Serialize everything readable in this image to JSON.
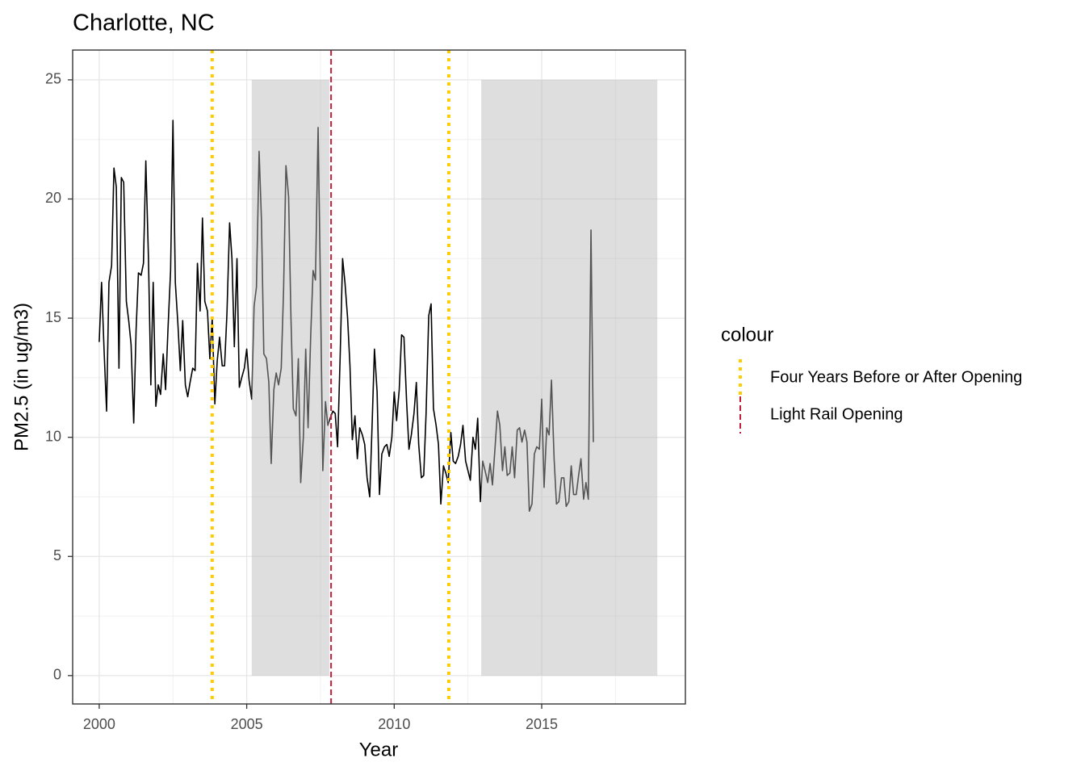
{
  "chart_data": {
    "type": "line",
    "title": "Charlotte, NC",
    "x_label": "Year",
    "y_label": "PM2.5 (in ug/m3)",
    "color": "#000000",
    "x": [
      2000.0,
      2000.08,
      2000.17,
      2000.25,
      2000.33,
      2000.42,
      2000.5,
      2000.58,
      2000.67,
      2000.75,
      2000.83,
      2000.92,
      2001.0,
      2001.08,
      2001.17,
      2001.25,
      2001.33,
      2001.42,
      2001.5,
      2001.58,
      2001.67,
      2001.75,
      2001.83,
      2001.92,
      2002.0,
      2002.08,
      2002.17,
      2002.25,
      2002.33,
      2002.42,
      2002.5,
      2002.58,
      2002.67,
      2002.75,
      2002.83,
      2002.92,
      2003.0,
      2003.08,
      2003.17,
      2003.25,
      2003.33,
      2003.42,
      2003.5,
      2003.58,
      2003.67,
      2003.75,
      2003.83,
      2003.92,
      2004.0,
      2004.08,
      2004.17,
      2004.25,
      2004.33,
      2004.42,
      2004.5,
      2004.58,
      2004.67,
      2004.75,
      2004.83,
      2004.92,
      2005.0,
      2005.08,
      2005.17,
      2005.25,
      2005.33,
      2005.42,
      2005.5,
      2005.58,
      2005.67,
      2005.75,
      2005.83,
      2005.92,
      2006.0,
      2006.08,
      2006.17,
      2006.25,
      2006.33,
      2006.42,
      2006.5,
      2006.58,
      2006.67,
      2006.75,
      2006.83,
      2006.92,
      2007.0,
      2007.08,
      2007.17,
      2007.25,
      2007.33,
      2007.42,
      2007.5,
      2007.58,
      2007.67,
      2007.75,
      2007.83,
      2007.92,
      2008.0,
      2008.08,
      2008.17,
      2008.25,
      2008.33,
      2008.42,
      2008.5,
      2008.58,
      2008.67,
      2008.75,
      2008.83,
      2008.92,
      2009.0,
      2009.08,
      2009.17,
      2009.25,
      2009.33,
      2009.42,
      2009.5,
      2009.58,
      2009.67,
      2009.75,
      2009.83,
      2009.92,
      2010.0,
      2010.08,
      2010.17,
      2010.25,
      2010.33,
      2010.42,
      2010.5,
      2010.58,
      2010.67,
      2010.75,
      2010.83,
      2010.92,
      2011.0,
      2011.08,
      2011.17,
      2011.25,
      2011.33,
      2011.42,
      2011.5,
      2011.58,
      2011.67,
      2011.75,
      2011.83,
      2011.92,
      2012.0,
      2012.08,
      2012.17,
      2012.25,
      2012.33,
      2012.42,
      2012.5,
      2012.58,
      2012.67,
      2012.75,
      2012.83,
      2012.92,
      2013.0,
      2013.08,
      2013.17,
      2013.25,
      2013.33,
      2013.42,
      2013.5,
      2013.58,
      2013.67,
      2013.75,
      2013.83,
      2013.92,
      2014.0,
      2014.08,
      2014.17,
      2014.25,
      2014.33,
      2014.42,
      2014.5,
      2014.58,
      2014.67,
      2014.75,
      2014.83,
      2014.92,
      2015.0,
      2015.08,
      2015.17,
      2015.25,
      2015.33,
      2015.42,
      2015.5,
      2015.58,
      2015.67,
      2015.75,
      2015.83,
      2015.92,
      2016.0,
      2016.08,
      2016.17,
      2016.25,
      2016.33,
      2016.42,
      2016.5,
      2016.58,
      2016.67,
      2016.75
    ],
    "values": [
      14.0,
      16.5,
      13.5,
      11.1,
      16.5,
      17.2,
      21.3,
      20.5,
      12.9,
      20.9,
      20.7,
      15.7,
      14.9,
      13.9,
      10.6,
      14.5,
      16.9,
      16.8,
      17.3,
      21.6,
      17.5,
      12.2,
      16.5,
      11.3,
      12.2,
      11.8,
      13.5,
      12.0,
      14.5,
      17.0,
      23.3,
      16.5,
      14.7,
      12.8,
      14.9,
      12.2,
      11.7,
      12.3,
      12.9,
      12.8,
      17.3,
      15.3,
      19.2,
      15.7,
      15.3,
      13.3,
      15.0,
      11.4,
      13.2,
      14.2,
      13.0,
      13.0,
      15.2,
      19.0,
      17.5,
      13.8,
      17.5,
      12.1,
      12.5,
      12.9,
      13.7,
      12.4,
      11.6,
      15.5,
      16.3,
      22.0,
      19.1,
      13.5,
      13.3,
      12.3,
      8.9,
      12.0,
      12.7,
      12.2,
      12.9,
      16.2,
      21.4,
      20.1,
      15.0,
      11.2,
      10.9,
      13.3,
      8.1,
      10.0,
      13.7,
      10.4,
      14.3,
      17.0,
      16.6,
      23.0,
      16.2,
      8.6,
      11.5,
      10.5,
      10.8,
      11.1,
      11.0,
      9.6,
      13.5,
      17.5,
      16.5,
      15.0,
      13.0,
      9.9,
      10.9,
      9.1,
      10.4,
      10.1,
      9.7,
      8.3,
      7.5,
      10.5,
      13.7,
      11.9,
      7.6,
      9.3,
      9.6,
      9.7,
      9.2,
      10.0,
      11.9,
      10.7,
      12.0,
      14.3,
      14.2,
      11.5,
      9.5,
      10.1,
      11.0,
      12.3,
      9.7,
      8.3,
      8.4,
      11.0,
      15.1,
      15.6,
      11.2,
      10.5,
      9.7,
      7.2,
      8.8,
      8.5,
      8.1,
      10.2,
      9.0,
      8.9,
      9.2,
      9.7,
      10.5,
      9.0,
      8.6,
      8.2,
      10.0,
      9.5,
      10.8,
      7.3,
      9.0,
      8.6,
      8.1,
      8.9,
      8.0,
      9.6,
      11.1,
      10.5,
      8.6,
      9.6,
      8.4,
      8.5,
      9.6,
      8.3,
      10.3,
      10.4,
      9.8,
      10.3,
      9.8,
      6.9,
      7.2,
      9.3,
      9.6,
      9.5,
      11.6,
      7.9,
      10.4,
      10.1,
      12.4,
      9.1,
      7.2,
      7.3,
      8.3,
      8.3,
      7.1,
      7.3,
      8.8,
      7.6,
      7.6,
      8.4,
      9.1,
      7.4,
      8.1,
      7.4,
      18.7,
      9.8
    ],
    "xlim": [
      1999.1,
      2019.87
    ],
    "ylim": [
      -1.19,
      26.25
    ],
    "xticks": [
      2000,
      2005,
      2010,
      2015
    ],
    "yticks": [
      0,
      5,
      10,
      15,
      20,
      25
    ],
    "grid": true,
    "shaded_regions": [
      {
        "x": [
          2005.17,
          2007.8
        ],
        "y": [
          0,
          25
        ]
      },
      {
        "x": [
          2012.95,
          2018.92
        ],
        "y": [
          0,
          25
        ]
      }
    ],
    "legend_title": "colour",
    "reference_lines": [
      {
        "name": "Four Years Before or After Opening",
        "color": "#FFCC00",
        "style": "dotted",
        "x": [
          2003.83,
          2011.85
        ]
      },
      {
        "name": "Light Rail Opening",
        "color": "#C41E3A",
        "style": "dashed",
        "x": [
          2007.86
        ]
      }
    ]
  }
}
